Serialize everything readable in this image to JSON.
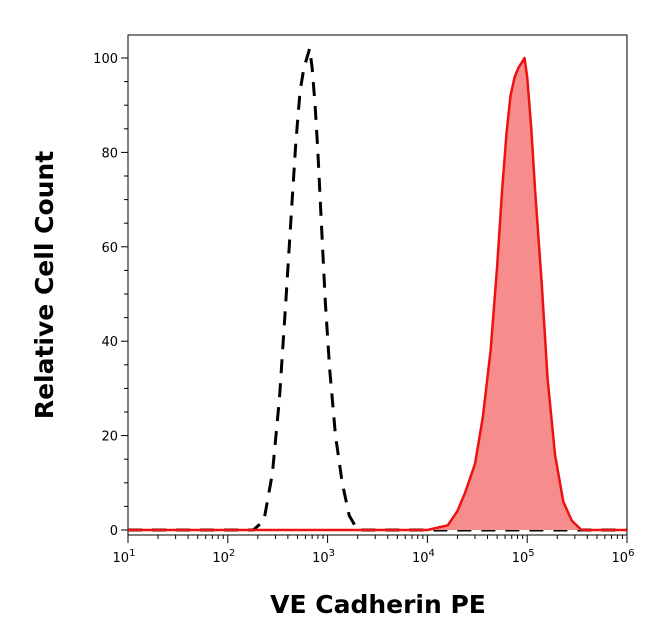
{
  "chart_data": {
    "type": "area",
    "xlabel": "VE Cadherin PE",
    "ylabel": "Relative Cell Count",
    "xscale": "log",
    "xlim": [
      10,
      1000000
    ],
    "ylim": [
      0,
      100
    ],
    "x_tick_labels": [
      {
        "base": "10",
        "exp": "1"
      },
      {
        "base": "10",
        "exp": "2"
      },
      {
        "base": "10",
        "exp": "3"
      },
      {
        "base": "10",
        "exp": "4"
      },
      {
        "base": "10",
        "exp": "5"
      },
      {
        "base": "10",
        "exp": "6"
      }
    ],
    "y_ticks": [
      "0",
      "20",
      "40",
      "60",
      "80",
      "100"
    ],
    "grid": false,
    "legend": "none",
    "series": [
      {
        "style": "dashed",
        "color": "#000000",
        "fill": "none",
        "x": [
          10,
          100,
          180,
          230,
          280,
          330,
          380,
          430,
          480,
          530,
          580,
          620,
          660,
          700,
          750,
          800,
          870,
          950,
          1050,
          1200,
          1400,
          1650,
          2000,
          10000,
          1000000
        ],
        "y": [
          0,
          0,
          0,
          2,
          12,
          28,
          48,
          66,
          82,
          93,
          98,
          100,
          102,
          98,
          90,
          80,
          64,
          48,
          34,
          20,
          10,
          3,
          0,
          0,
          0
        ]
      },
      {
        "style": "solid",
        "color": "#ee1111",
        "fill": "#f78c8c",
        "x": [
          10,
          10000,
          16000,
          20000,
          24000,
          30000,
          36000,
          43000,
          50000,
          56000,
          62000,
          68000,
          75000,
          82000,
          88000,
          94000,
          100000,
          110000,
          120000,
          140000,
          160000,
          190000,
          230000,
          280000,
          350000,
          1000000
        ],
        "y": [
          0,
          0,
          1,
          4,
          8,
          14,
          24,
          38,
          56,
          72,
          84,
          92,
          96,
          98,
          99,
          100,
          96,
          85,
          72,
          52,
          32,
          16,
          6,
          2,
          0,
          0
        ]
      }
    ]
  }
}
